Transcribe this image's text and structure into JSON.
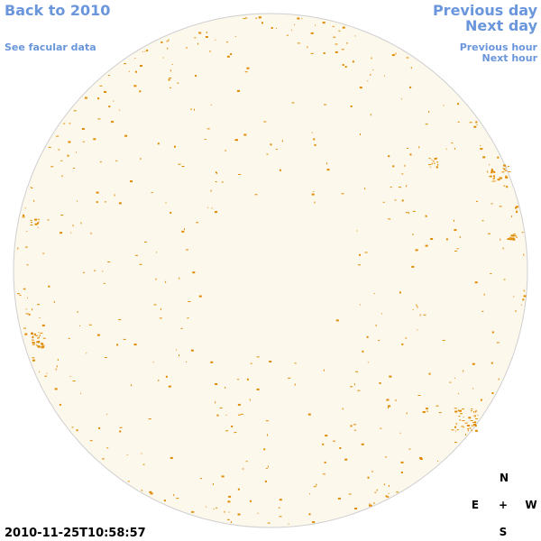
{
  "nav": {
    "back": "Back to 2010",
    "facular": "See facular data",
    "previous_day": "Previous day",
    "next_day": "Next day",
    "previous_hour": "Previous hour",
    "next_hour": "Next hour"
  },
  "timestamp": "2010-11-25T10:58:57",
  "compass": {
    "north": "N",
    "east": "E",
    "center": "+",
    "west": "W",
    "south": "S"
  }
}
